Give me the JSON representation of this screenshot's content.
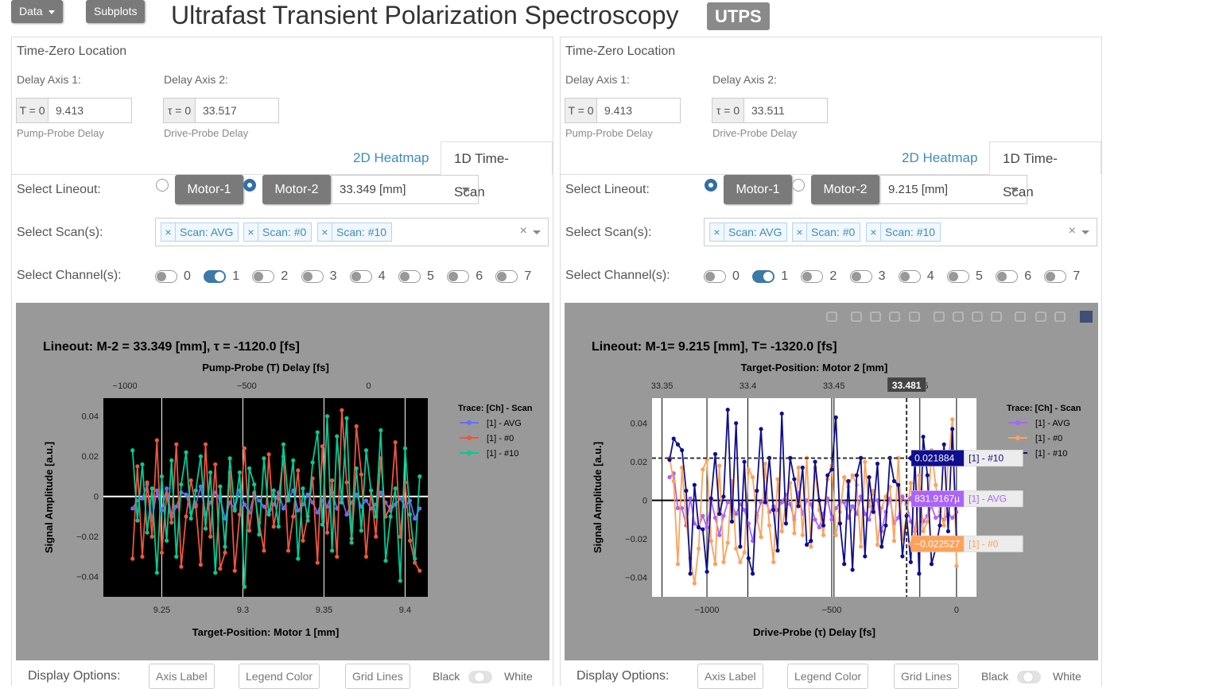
{
  "topbar": {
    "data_menu": "Data",
    "subplots": "Subplots",
    "title": "Ultrafast Transient Polarization Spectroscopy",
    "badge": "UTPS"
  },
  "panels": [
    {
      "section_title": "Time-Zero Location",
      "axis1_label": "Delay Axis 1:",
      "axis1_addon": "T = 0",
      "axis1_value": "9.413",
      "axis1_help": "Pump-Probe Delay",
      "axis2_label": "Delay Axis 2:",
      "axis2_addon": "τ = 0",
      "axis2_value": "33.517",
      "axis2_help": "Drive-Probe Delay",
      "tabs": [
        "2D Heatmap",
        "1D Time-Scan"
      ],
      "active_tab": 1,
      "lineout_label": "Select Lineout:",
      "motor1": "Motor-1",
      "motor2": "Motor-2",
      "selected_motor": 2,
      "lineout_value": "33.349 [mm]",
      "scans_label": "Select Scan(s):",
      "scans": [
        "Scan: AVG",
        "Scan: #0",
        "Scan: #10"
      ],
      "scans_clear": "×",
      "channels_label": "Select Channel(s):",
      "channels": [
        "0",
        "1",
        "2",
        "3",
        "4",
        "5",
        "6",
        "7"
      ],
      "channels_on": [
        false,
        true,
        false,
        false,
        false,
        false,
        false,
        false
      ],
      "display_label": "Display Options:",
      "display_buttons": [
        "Axis Label",
        "Legend Color",
        "Grid Lines"
      ],
      "switch_left": "Black",
      "switch_right": "White"
    },
    {
      "section_title": "Time-Zero Location",
      "axis1_label": "Delay Axis 1:",
      "axis1_addon": "T = 0",
      "axis1_value": "9.413",
      "axis1_help": "Pump-Probe Delay",
      "axis2_label": "Delay Axis 2:",
      "axis2_addon": "τ = 0",
      "axis2_value": "33.511",
      "axis2_help": "Drive-Probe Delay",
      "tabs": [
        "2D Heatmap",
        "1D Time-Scan"
      ],
      "active_tab": 1,
      "lineout_label": "Select Lineout:",
      "motor1": "Motor-1",
      "motor2": "Motor-2",
      "selected_motor": 1,
      "lineout_value": "9.215 [mm]",
      "scans_label": "Select Scan(s):",
      "scans": [
        "Scan: AVG",
        "Scan: #0",
        "Scan: #10"
      ],
      "scans_clear": "×",
      "channels_label": "Select Channel(s):",
      "channels": [
        "0",
        "1",
        "2",
        "3",
        "4",
        "5",
        "6",
        "7"
      ],
      "channels_on": [
        false,
        true,
        false,
        false,
        false,
        false,
        false,
        false
      ],
      "display_label": "Display Options:",
      "display_buttons": [
        "Axis Label",
        "Legend Color",
        "Grid Lines"
      ],
      "switch_left": "Black",
      "switch_right": "White"
    }
  ],
  "chart_data": [
    {
      "type": "line",
      "title": "Lineout: M-2 = 33.349 [mm], τ = -1120.0 [fs]",
      "xlabel": "Target-Position: Motor 1 [mm]",
      "x2label": "Pump-Probe (T) Delay [fs]",
      "ylabel": "Signal Amplitude [a.u.]",
      "xlim": [
        9.214,
        9.414
      ],
      "ylim": [
        -0.05,
        0.049
      ],
      "x_ticks": [
        "9.25",
        "9.3",
        "9.35",
        "9.4"
      ],
      "x2_ticks": [
        "−1000",
        "−500",
        "0"
      ],
      "y_ticks": [
        "0.04",
        "0.02",
        "0",
        "−0.02",
        "−0.04"
      ],
      "background": "black",
      "legend_title": "Trace: [Ch] - Scan",
      "legend_position": "right",
      "series": [
        {
          "name": "[1]  -  AVG",
          "color": "#636efa",
          "y": [
            -0.006,
            -0.002,
            -0.001,
            0.006,
            -0.012,
            0.003,
            -0.007,
            0.004,
            -0.01,
            -0.005,
            0.002,
            0.001,
            -0.008,
            -0.004,
            0.005,
            -0.009,
            -0.003,
            0.002,
            -0.001,
            -0.011,
            -0.003,
            -0.006,
            0.003,
            -0.004,
            -0.008,
            0.001,
            -0.002,
            -0.005,
            -0.009,
            -0.004,
            0.002,
            -0.006,
            -0.001,
            0.003,
            -0.007,
            -0.004,
            0.001,
            -0.003,
            -0.008,
            -0.002,
            -0.005,
            0.002,
            -0.006,
            -0.001,
            -0.009,
            -0.003,
            0.001,
            -0.005,
            -0.002,
            -0.006,
            -0.004,
            0.002,
            -0.003,
            -0.007,
            -0.004,
            -0.001,
            -0.005,
            -0.002,
            -0.011,
            -0.006
          ]
        },
        {
          "name": "[1]  -  #0",
          "color": "#ef553b",
          "y": [
            -0.031,
            0.015,
            -0.03,
            0.007,
            -0.02,
            0.028,
            -0.028,
            0.001,
            -0.013,
            0.026,
            -0.035,
            -0.01,
            0.008,
            -0.005,
            -0.034,
            0.026,
            -0.02,
            0.016,
            -0.036,
            -0.028,
            0.012,
            -0.037,
            -0.009,
            0.024,
            -0.017,
            0.002,
            -0.013,
            -0.027,
            0.021,
            -0.015,
            -0.001,
            0.02,
            -0.027,
            -0.01,
            0.013,
            -0.022,
            -0.01,
            0.009,
            -0.033,
            0.025,
            -0.018,
            0.008,
            -0.03,
            0.043,
            0.007,
            -0.021,
            0.035,
            0.011,
            -0.03,
            0.003,
            -0.02,
            0.019,
            -0.01,
            -0.005,
            0.027,
            -0.02,
            0.007,
            -0.022,
            -0.033,
            -0.037
          ]
        },
        {
          "name": "[1]  -  #10",
          "color": "#00cc96",
          "y": [
            0.023,
            -0.012,
            0.016,
            -0.018,
            0.004,
            -0.038,
            0.01,
            -0.022,
            0.018,
            -0.03,
            0.006,
            0.022,
            -0.011,
            0.003,
            0.02,
            -0.016,
            0.012,
            -0.038,
            0.005,
            -0.025,
            0.019,
            -0.007,
            0.012,
            -0.045,
            0.014,
            0.006,
            -0.019,
            0.019,
            -0.009,
            0.003,
            -0.015,
            0.026,
            -0.002,
            0.018,
            -0.031,
            0.004,
            -0.012,
            0.017,
            0.032,
            -0.014,
            0.04,
            -0.027,
            0.03,
            -0.003,
            0.039,
            -0.023,
            0.014,
            -0.017,
            0.023,
            0.003,
            -0.01,
            0.033,
            -0.032,
            -0.01,
            0.004,
            -0.042,
            0.024,
            -0.009,
            -0.031,
            0.01
          ]
        }
      ]
    },
    {
      "type": "line",
      "title": "Lineout: M-1= 9.215 [mm], T= -1320.0 [fs]",
      "xlabel": "Drive-Probe (τ) Delay [fs]",
      "x2label": "Target-Position: Motor 2 [mm]",
      "ylabel": "Signal Amplitude [a.u.]",
      "xlim": [
        -1220,
        80
      ],
      "ylim": [
        -0.05,
        0.053
      ],
      "x_ticks": [
        "−1000",
        "−500",
        "0"
      ],
      "x2_ticks": [
        "33.35",
        "33.4",
        "33.45",
        "33.5"
      ],
      "y_ticks": [
        "0.04",
        "0.02",
        "0",
        "−0.02",
        "−0.04"
      ],
      "background": "white",
      "legend_title": "Trace: [Ch] - Scan",
      "legend_position": "right",
      "hover_x_label": "33.481",
      "hover_labels": [
        {
          "value": "0.021884",
          "trace": "[1]  - #10",
          "color": "#0e0e8f",
          "y": 0.021884
        },
        {
          "value": "831.9167µ",
          "trace": "[1]  - AVG",
          "color": "#ab63fa",
          "y": 0.00083
        },
        {
          "value": "−0.022527",
          "trace": "[1]  - #0",
          "color": "#ffa15a",
          "y": -0.022527
        }
      ],
      "hover_x": -200,
      "series": [
        {
          "name": "[1]  -  AVG",
          "color": "#ab63fa",
          "y": [
            0.012,
            0.014,
            -0.004,
            -0.004,
            -0.013,
            0.001,
            -0.012,
            -0.014,
            -0.008,
            -0.014,
            0.0,
            -0.009,
            -0.018,
            -0.008,
            -0.001,
            -0.002,
            -0.007,
            -0.002,
            -0.005,
            -0.012,
            -0.021,
            -0.008,
            -0.001,
            0.001,
            -0.006,
            -0.003,
            -0.005,
            -0.001,
            0.003,
            -0.002,
            -0.01,
            0.004,
            -0.007,
            0.0,
            -0.002,
            -0.01,
            -0.014,
            -0.007,
            0.001,
            -0.01,
            -0.004,
            -0.001,
            -0.001,
            -0.009,
            -0.003,
            -0.007,
            0.002,
            -0.007,
            -0.01,
            0.0,
            0.0,
            -0.016,
            -0.006,
            0.001,
            -0.012,
            -0.009,
            0.002,
            -0.002,
            -0.011,
            -0.016,
            0.001,
            -0.011,
            -0.008,
            -0.003,
            -0.009,
            -0.008,
            -0.01,
            -0.007,
            -0.009,
            -0.006
          ]
        },
        {
          "name": "[1]  -  #0",
          "color": "#ffa15a",
          "y": [
            0.022,
            0.01,
            -0.033,
            0.017,
            -0.01,
            -0.03,
            -0.043,
            -0.025,
            0.016,
            0.021,
            -0.021,
            -0.033,
            0.018,
            -0.032,
            -0.022,
            0.01,
            -0.025,
            -0.032,
            -0.027,
            0.016,
            0.012,
            -0.009,
            -0.019,
            0.019,
            -0.013,
            -0.032,
            0.011,
            -0.016,
            -0.001,
            0.009,
            -0.017,
            0.017,
            -0.018,
            0.022,
            -0.024,
            0.017,
            -0.005,
            -0.018,
            0.011,
            0.018,
            -0.018,
            -0.006,
            0.012,
            0.007,
            0.013,
            0.008,
            -0.024,
            0.02,
            -0.003,
            0.005,
            -0.023,
            -0.004,
            0.002,
            0.007,
            -0.021,
            0.022,
            -0.02,
            -0.008,
            0.009,
            -0.023,
            0.013,
            -0.016,
            -0.011,
            0.026,
            0.008,
            -0.006,
            -0.013,
            0.019,
            0.042,
            -0.034
          ]
        },
        {
          "name": "[1]  -  #10",
          "color": "#0e0e8f",
          "y": [
            0.021,
            0.032,
            0.029,
            0.026,
            0.005,
            -0.038,
            0.008,
            -0.014,
            -0.015,
            -0.037,
            0.001,
            0.024,
            -0.007,
            0.002,
            0.047,
            -0.011,
            0.04,
            -0.024,
            0.02,
            -0.03,
            -0.038,
            0.005,
            0.037,
            -0.001,
            0.022,
            -0.005,
            -0.026,
            0.045,
            -0.012,
            0.022,
            0.011,
            -0.003,
            0.017,
            -0.023,
            -0.021,
            0.02,
            0.0,
            -0.013,
            0.013,
            0.016,
            0.043,
            -0.012,
            -0.033,
            0.01,
            -0.036,
            0.013,
            0.022,
            -0.029,
            0.012,
            -0.006,
            0.019,
            -0.024,
            -0.013,
            0.022,
            0.01,
            0.008,
            -0.029,
            -0.008,
            -0.032,
            0.022,
            -0.038,
            0.033,
            0.013,
            -0.033,
            -0.025,
            -0.013,
            0.029,
            -0.016,
            0.037,
            -0.019
          ]
        }
      ]
    }
  ]
}
